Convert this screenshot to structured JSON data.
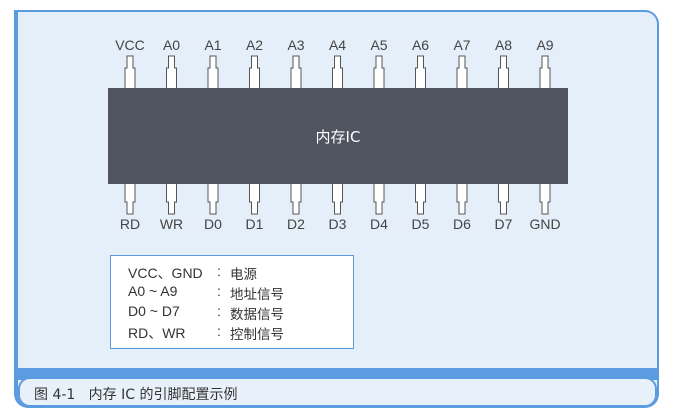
{
  "chip": {
    "label": "内存IC",
    "color": "#505360"
  },
  "top_pins": [
    "VCC",
    "A0",
    "A1",
    "A2",
    "A3",
    "A4",
    "A5",
    "A6",
    "A7",
    "A8",
    "A9"
  ],
  "bottom_pins": [
    "RD",
    "WR",
    "D0",
    "D1",
    "D2",
    "D3",
    "D4",
    "D5",
    "D6",
    "D7",
    "GND"
  ],
  "legend": [
    {
      "key": "VCC、GND",
      "colon": ":",
      "value": "电源"
    },
    {
      "key": "A0 ~ A9",
      "colon": ":",
      "value": "地址信号"
    },
    {
      "key": "D0 ~ D7",
      "colon": ":",
      "value": "数据信号"
    },
    {
      "key": "RD、WR",
      "colon": ":",
      "value": "控制信号"
    }
  ],
  "caption": "图 4-1   内存 IC 的引脚配置示例",
  "accent_color": "#5b9be0"
}
